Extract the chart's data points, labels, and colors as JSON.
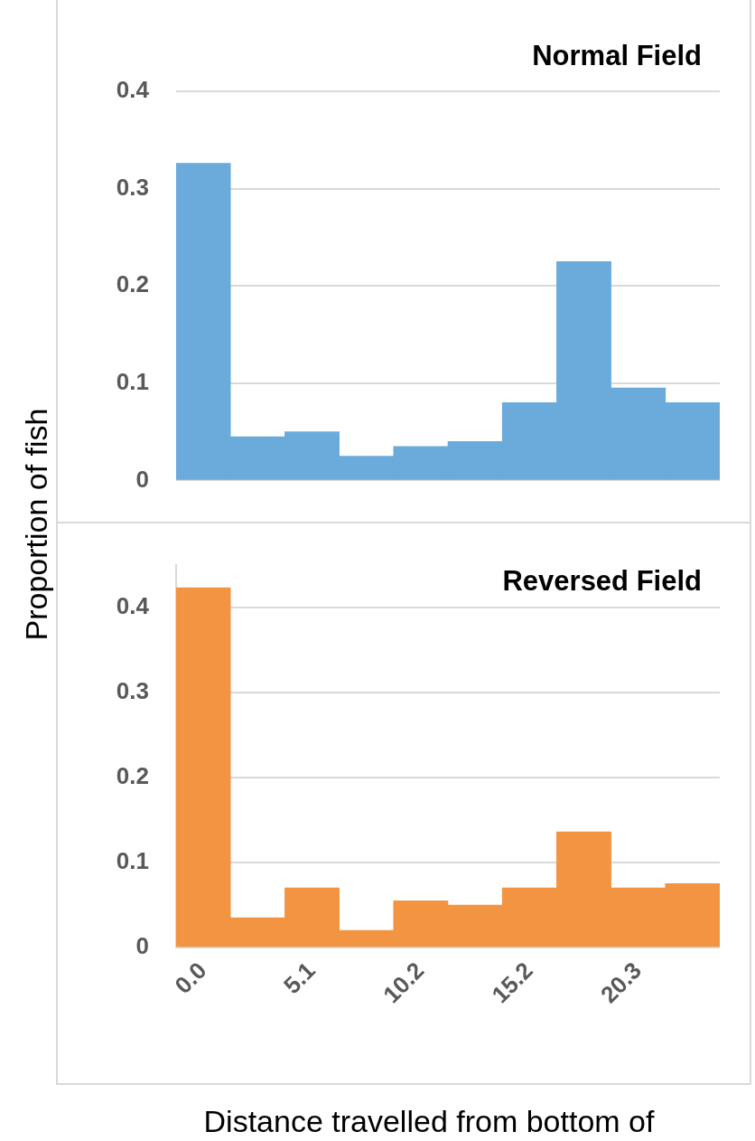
{
  "chart_data": [
    {
      "type": "bar",
      "title": "Normal Field",
      "ylabel": "Proportion of fish",
      "categories": [
        "0.0",
        null,
        "5.1",
        null,
        "10.2",
        null,
        "15.2",
        null,
        "20.3",
        null
      ],
      "values": [
        0.326,
        0.045,
        0.05,
        0.025,
        0.035,
        0.04,
        0.08,
        0.225,
        0.095,
        0.08
      ],
      "color": "#6aabdb",
      "ylim": [
        0,
        0.4
      ],
      "yticks": [
        0,
        0.1,
        0.2,
        0.3,
        0.4
      ],
      "grid": "y",
      "tick_labels": "y"
    },
    {
      "type": "bar",
      "title": "Reversed Field",
      "xlabel": "Distance travelled from bottom of",
      "categories": [
        "0.0",
        null,
        "5.1",
        null,
        "10.2",
        null,
        "15.2",
        null,
        "20.3",
        null
      ],
      "values": [
        0.423,
        0.035,
        0.07,
        0.02,
        0.055,
        0.05,
        0.07,
        0.136,
        0.07,
        0.075
      ],
      "color": "#f29441",
      "ylim": [
        0,
        0.45
      ],
      "yticks": [
        0,
        0.1,
        0.2,
        0.3,
        0.4
      ],
      "grid": "y"
    }
  ]
}
